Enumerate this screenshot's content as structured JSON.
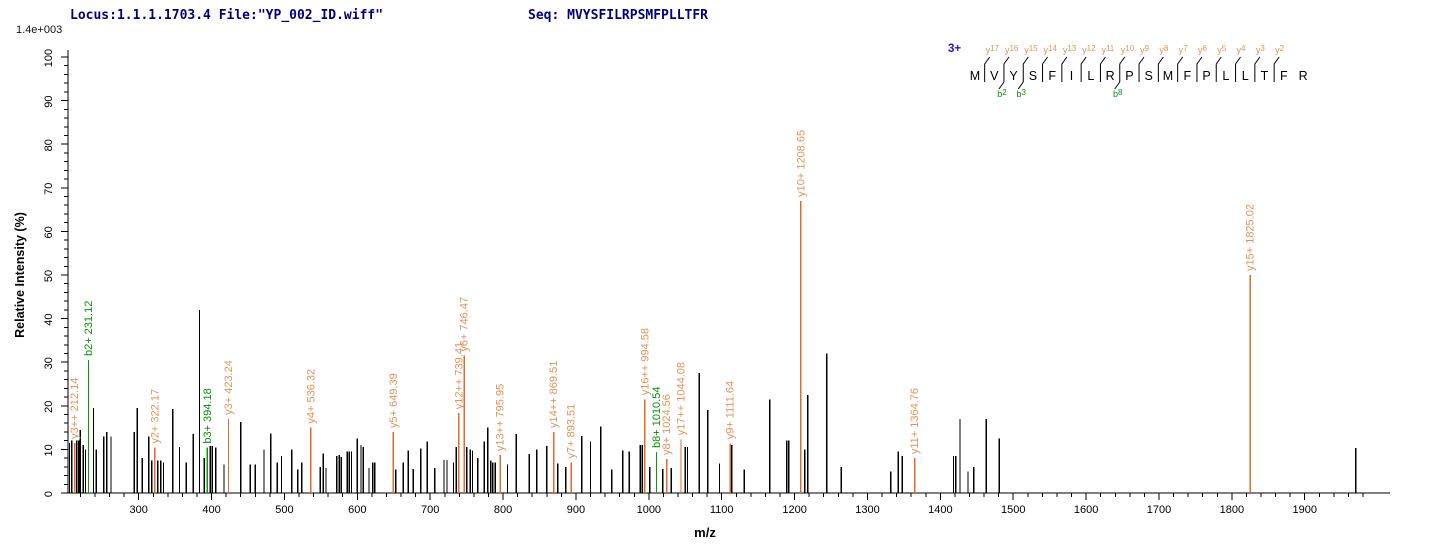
{
  "header": {
    "locus_file": "Locus:1.1.1.1703.4 File:\"YP_002_ID.wiff\"",
    "seq_label": "Seq: MVYSFILRPSMFPLLTFR",
    "scale_label": "1.4e+003"
  },
  "colors": {
    "y_ion_line": "#dd6d28",
    "y_ion_label": "#e0945c",
    "b_ion_line": "#00a000",
    "b_ion_label": "#0a8f0a",
    "unassigned": "#000000",
    "axis": "#000000",
    "header_text": "#00007f",
    "charge_label": "#1b1bcb"
  },
  "chart_data": {
    "type": "bar",
    "subtype": "ms2-fragment-spectrum",
    "xlabel": "m/z",
    "ylabel": "Relative Intensity (%)",
    "xlim": [
      203,
      2017
    ],
    "ylim": [
      0,
      100
    ],
    "x_major_ticks": [
      300,
      400,
      500,
      600,
      700,
      800,
      900,
      1000,
      1100,
      1200,
      1300,
      1400,
      1500,
      1600,
      1700,
      1800,
      1900
    ],
    "x_minor_step": 20,
    "y_major_step": 10,
    "y_minor_step": 2,
    "grid": "off",
    "legend": "none",
    "peptide": {
      "charge_label": "3+",
      "residues": [
        "M",
        "V",
        "Y",
        "S",
        "F",
        "I",
        "L",
        "R",
        "P",
        "S",
        "M",
        "F",
        "P",
        "L",
        "L",
        "T",
        "F",
        "R"
      ],
      "y_boundary_labels": [
        "y17",
        "y16",
        "y15",
        "y14",
        "y13",
        "y12",
        "y11",
        "y10",
        "y9",
        "y8",
        "y7",
        "y6",
        "y5",
        "y4",
        "y3",
        "y2"
      ],
      "b_boundary_labels": {
        "2": "b2",
        "3": "b3",
        "8": "b8"
      }
    },
    "assigned_peaks": [
      {
        "label": "y3++ 212.14",
        "mz": 212.14,
        "intensity": 11.5,
        "series": "y"
      },
      {
        "label": "b2+ 231.12",
        "mz": 231.12,
        "intensity": 30.5,
        "series": "b"
      },
      {
        "label": "y2+ 322.17",
        "mz": 322.17,
        "intensity": 10.4,
        "series": "y"
      },
      {
        "label": "b3+ 394.18",
        "mz": 394.18,
        "intensity": 10.4,
        "series": "b"
      },
      {
        "label": "y3+ 423.24",
        "mz": 423.24,
        "intensity": 17.0,
        "series": "y"
      },
      {
        "label": "y4+ 536.32",
        "mz": 536.32,
        "intensity": 15.0,
        "series": "y"
      },
      {
        "label": "y5+ 649.39",
        "mz": 649.39,
        "intensity": 14.0,
        "series": "y"
      },
      {
        "label": "y12++ 739.41",
        "mz": 739.41,
        "intensity": 18.3,
        "series": "y"
      },
      {
        "label": "y6+ 746.47",
        "mz": 746.47,
        "intensity": 31.5,
        "series": "y"
      },
      {
        "label": "y13++ 795.95",
        "mz": 795.95,
        "intensity": 8.7,
        "series": "y"
      },
      {
        "label": "y14++ 869.51",
        "mz": 869.51,
        "intensity": 14.0,
        "series": "y"
      },
      {
        "label": "y7+ 893.51",
        "mz": 893.51,
        "intensity": 7.0,
        "series": "y"
      },
      {
        "label": "y16++ 994.58",
        "mz": 994.58,
        "intensity": 21.5,
        "series": "y"
      },
      {
        "label": "b8+ 1010.54",
        "mz": 1010.54,
        "intensity": 9.4,
        "series": "b"
      },
      {
        "label": "y8+ 1024.56",
        "mz": 1024.56,
        "intensity": 7.8,
        "series": "y"
      },
      {
        "label": "y17++ 1044.08",
        "mz": 1044.08,
        "intensity": 12.3,
        "series": "y"
      },
      {
        "label": "y9+ 1111.64",
        "mz": 1111.64,
        "intensity": 11.4,
        "series": "y"
      },
      {
        "label": "y10+ 1208.65",
        "mz": 1208.65,
        "intensity": 67.0,
        "series": "y"
      },
      {
        "label": "y11+ 1364.76",
        "mz": 1364.76,
        "intensity": 8.0,
        "series": "y"
      },
      {
        "label": "y15+ 1825.02",
        "mz": 1825.02,
        "intensity": 50.0,
        "series": "y"
      }
    ],
    "unassigned_peaks": [
      [
        205,
        11.5
      ],
      [
        208,
        12
      ],
      [
        215,
        12
      ],
      [
        218,
        12
      ],
      [
        220,
        14.5
      ],
      [
        224,
        11
      ],
      [
        227,
        10
      ],
      [
        238,
        19.5
      ],
      [
        242,
        10
      ],
      [
        252,
        13
      ],
      [
        256,
        14
      ],
      [
        262,
        13
      ],
      [
        294,
        14
      ],
      [
        298,
        19.5
      ],
      [
        305,
        8
      ],
      [
        314,
        13
      ],
      [
        318,
        7.5
      ],
      [
        326,
        7.5
      ],
      [
        330,
        7.5
      ],
      [
        334,
        7
      ],
      [
        347,
        19.3
      ],
      [
        356,
        10.5
      ],
      [
        365,
        7
      ],
      [
        375,
        13.5
      ],
      [
        383.5,
        42
      ],
      [
        390,
        8
      ],
      [
        398,
        10.8
      ],
      [
        401,
        10.8
      ],
      [
        406,
        10.4
      ],
      [
        417,
        6.5
      ],
      [
        440,
        16.3
      ],
      [
        453,
        6.5
      ],
      [
        460,
        6.5
      ],
      [
        472,
        10
      ],
      [
        481,
        13.7
      ],
      [
        490,
        7
      ],
      [
        496,
        8.5
      ],
      [
        510,
        10
      ],
      [
        518,
        5.4
      ],
      [
        524,
        7
      ],
      [
        549,
        6
      ],
      [
        553,
        9.1
      ],
      [
        557,
        5.7
      ],
      [
        572,
        8.5
      ],
      [
        575,
        8.7
      ],
      [
        578,
        8.3
      ],
      [
        586,
        9.5
      ],
      [
        589,
        9.5
      ],
      [
        592,
        9.5
      ],
      [
        600,
        12.5
      ],
      [
        605,
        11
      ],
      [
        608,
        10.5
      ],
      [
        616,
        5.7
      ],
      [
        621,
        7
      ],
      [
        624,
        7
      ],
      [
        653,
        5.4
      ],
      [
        663,
        7
      ],
      [
        670,
        9.7
      ],
      [
        677,
        5.5
      ],
      [
        687,
        10.2
      ],
      [
        696,
        11.8
      ],
      [
        706,
        5.7
      ],
      [
        719,
        7.6
      ],
      [
        723,
        7.6
      ],
      [
        732,
        7
      ],
      [
        736,
        10.5
      ],
      [
        750,
        10.5
      ],
      [
        755,
        10
      ],
      [
        758,
        9.7
      ],
      [
        765,
        8
      ],
      [
        774,
        11.8
      ],
      [
        779,
        15
      ],
      [
        783,
        7.5
      ],
      [
        786,
        7
      ],
      [
        789,
        7
      ],
      [
        806,
        6.5
      ],
      [
        818,
        13.5
      ],
      [
        836,
        9
      ],
      [
        846,
        10
      ],
      [
        860,
        10.8
      ],
      [
        875,
        6.8
      ],
      [
        886,
        6
      ],
      [
        908,
        13.1
      ],
      [
        920,
        11.8
      ],
      [
        934,
        15.2
      ],
      [
        949,
        5.4
      ],
      [
        964,
        9.7
      ],
      [
        973,
        9.5
      ],
      [
        988,
        11
      ],
      [
        991,
        11
      ],
      [
        1001,
        6
      ],
      [
        1019,
        5.5
      ],
      [
        1031,
        5.7
      ],
      [
        1050,
        10.6
      ],
      [
        1053,
        10.6
      ],
      [
        1069,
        27.5
      ],
      [
        1081,
        19
      ],
      [
        1097,
        6.8
      ],
      [
        1114,
        11
      ],
      [
        1131,
        5.4
      ],
      [
        1166,
        21.5
      ],
      [
        1189,
        12
      ],
      [
        1192,
        12
      ],
      [
        1214,
        10
      ],
      [
        1218,
        22.5
      ],
      [
        1244,
        32
      ],
      [
        1264,
        6
      ],
      [
        1332,
        4.9
      ],
      [
        1342,
        9.5
      ],
      [
        1348,
        8.5
      ],
      [
        1418,
        8.5
      ],
      [
        1421,
        8.5
      ],
      [
        1427,
        17
      ],
      [
        1438,
        4.9
      ],
      [
        1446,
        6
      ],
      [
        1463,
        17
      ],
      [
        1481,
        12.5
      ],
      [
        1970,
        10.3
      ]
    ]
  }
}
